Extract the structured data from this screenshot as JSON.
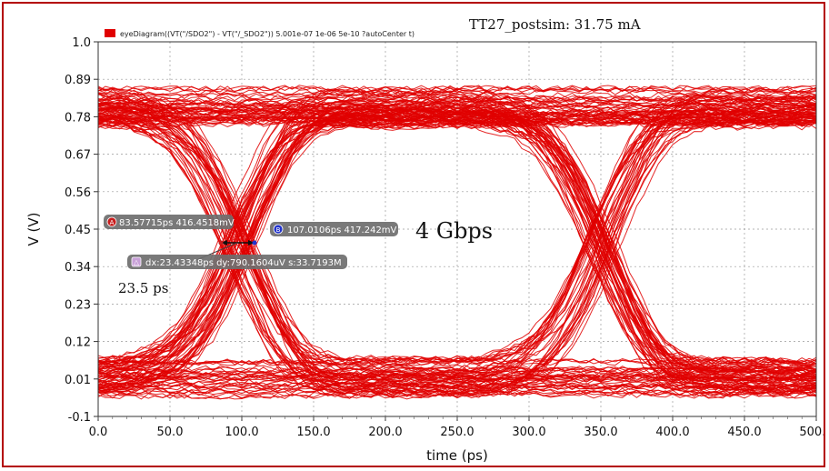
{
  "chart_data": {
    "type": "line",
    "title": "TT27_postsim: 31.75 mA",
    "legend": "eyeDiagram((VT(\"/SDO2\") - VT(\"/_SDO2\")) 5.001e-07 1e-06 5e-10 ?autoCenter t)",
    "legend_placement": "top-left",
    "xlabel": "time (ps)",
    "ylabel": "V (V)",
    "xlim": [
      0,
      500
    ],
    "ylim": [
      -0.1,
      1.0
    ],
    "grid": true,
    "x_ticks": [
      "0.0",
      "50.0",
      "100.0",
      "150.0",
      "200.0",
      "250.0",
      "300.0",
      "350.0",
      "400.0",
      "450.0",
      "500.0"
    ],
    "y_ticks": [
      "1.0",
      "0.89",
      "0.78",
      "0.67",
      "0.56",
      "0.45",
      "0.34",
      "0.23",
      "0.12",
      "0.01",
      "-0.1"
    ],
    "series": [
      {
        "color": "#e00000",
        "unit_interval_ps": 250,
        "high_level_v": 0.81,
        "low_level_v": 0.01,
        "crossings_ps": [
          97,
          347
        ],
        "crossing_level_v": 0.416
      }
    ],
    "markers": [
      {
        "id": "A",
        "label": "83.57715ps 416.4518mV",
        "x": 83.57715,
        "y": 0.4164518,
        "color": "#c81e1e"
      },
      {
        "id": "B",
        "label": "107.0106ps 417.242mV",
        "x": 107.0106,
        "y": 0.417242,
        "color": "#2233cc"
      }
    ],
    "delta_label": "dx:23.43348ps dy:790.1604uV s:33.7193M",
    "annotations": [
      "4 Gbps",
      "23.5 ps"
    ]
  }
}
